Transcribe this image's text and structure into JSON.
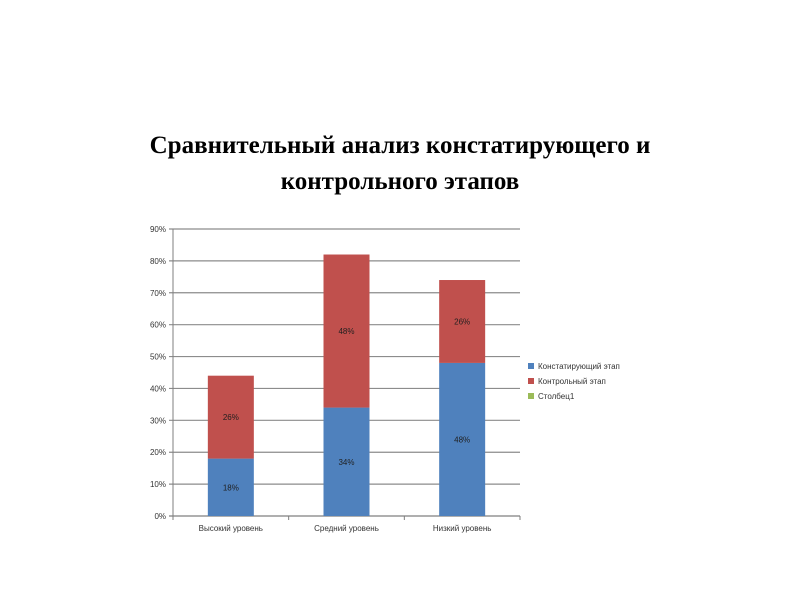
{
  "title": {
    "line1": "Сравнительный анализ констатирующего и",
    "line2": "контрольного этапов"
  },
  "chart_data": {
    "type": "bar",
    "stacked": true,
    "categories": [
      "Высокий уровень",
      "Средний уровень",
      "Низкий уровень"
    ],
    "series": [
      {
        "name": "Констатирующий этап",
        "values": [
          18,
          34,
          48
        ],
        "labels": [
          "18%",
          "34%",
          "48%"
        ],
        "color": "#4f81bd"
      },
      {
        "name": "Контрольный этап",
        "values": [
          26,
          48,
          26
        ],
        "labels": [
          "26%",
          "48%",
          "26%"
        ],
        "color": "#c0504d"
      },
      {
        "name": "Столбец1",
        "values": [
          0,
          0,
          0
        ],
        "labels": [
          "",
          "",
          ""
        ],
        "color": "#9bbb59"
      }
    ],
    "yticks": [
      "0%",
      "10%",
      "20%",
      "30%",
      "40%",
      "50%",
      "60%",
      "70%",
      "80%",
      "90%"
    ],
    "ylim": [
      0,
      90
    ],
    "grid": true,
    "legend": "right"
  }
}
